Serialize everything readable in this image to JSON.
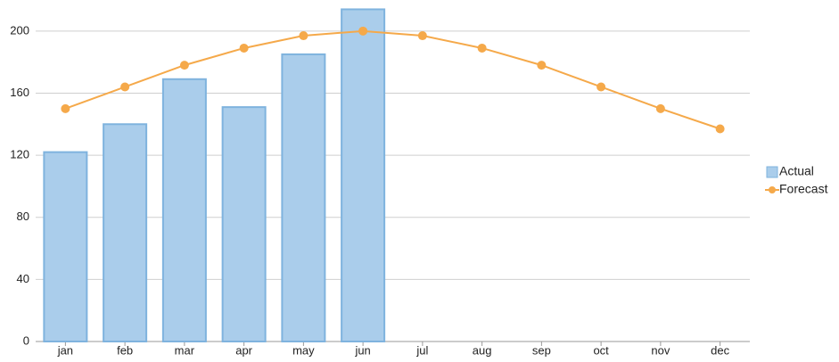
{
  "chart_data": {
    "type": "bar-line",
    "categories": [
      "jan",
      "feb",
      "mar",
      "apr",
      "may",
      "jun",
      "jul",
      "aug",
      "sep",
      "oct",
      "nov",
      "dec"
    ],
    "series": [
      {
        "name": "Actual",
        "type": "bar",
        "color": "#aacdeb",
        "values": [
          122,
          140,
          169,
          151,
          185,
          214,
          null,
          null,
          null,
          null,
          null,
          null
        ]
      },
      {
        "name": "Forecast",
        "type": "line",
        "color": "#f5a94a",
        "values": [
          150,
          164,
          178,
          189,
          197,
          200,
          197,
          189,
          178,
          164,
          150,
          137
        ]
      }
    ],
    "ylim": [
      0,
      220
    ],
    "yticks": [
      0,
      40,
      80,
      120,
      160,
      200
    ],
    "grid": true,
    "legend": "right"
  }
}
